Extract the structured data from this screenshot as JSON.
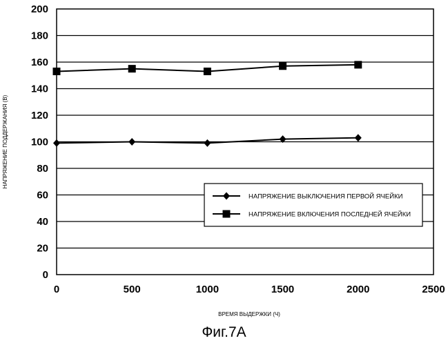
{
  "figure_caption": "Фиг.7А",
  "chart_data": {
    "type": "line",
    "xlabel": "ВРЕМЯ ВЫДЕРЖКИ (Ч)",
    "ylabel": "НАПРЯЖЕНИЕ ПОДДЕРЖАНИЯ (В)",
    "xlim": [
      0,
      2500
    ],
    "ylim": [
      0,
      200
    ],
    "xticks": [
      0,
      500,
      1000,
      1500,
      2000,
      2500
    ],
    "yticks": [
      0,
      20,
      40,
      60,
      80,
      100,
      120,
      140,
      160,
      180,
      200
    ],
    "grid": "horizontal",
    "legend_position": "right",
    "series": [
      {
        "name": "НАПРЯЖЕНИЕ ВЫКЛЮЧЕНИЯ ПЕРВОЙ ЯЧЕЙКИ",
        "marker": "diamond",
        "color": "#000000",
        "x": [
          0,
          500,
          1000,
          1500,
          2000
        ],
        "y": [
          99,
          100,
          99,
          102,
          103
        ]
      },
      {
        "name": "НАПРЯЖЕНИЕ ВКЛЮЧЕНИЯ ПОСЛЕДНЕЙ ЯЧЕЙКИ",
        "marker": "square",
        "color": "#000000",
        "x": [
          0,
          500,
          1000,
          1500,
          2000
        ],
        "y": [
          153,
          155,
          153,
          157,
          158
        ]
      }
    ]
  }
}
